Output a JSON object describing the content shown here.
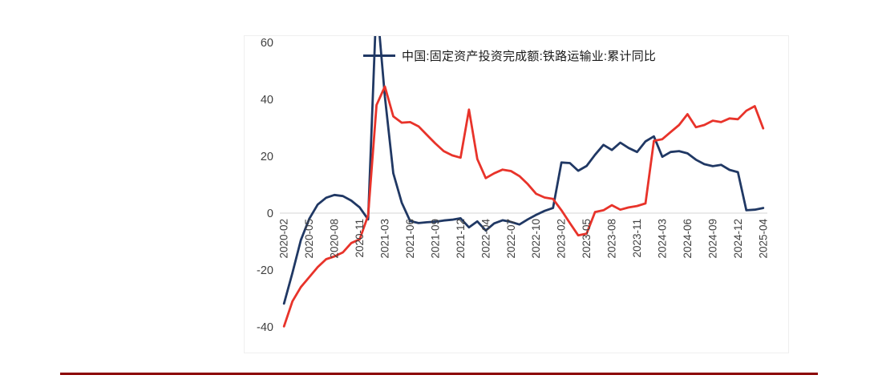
{
  "page": {
    "background": "#ffffff"
  },
  "colors": {
    "series_blue": "#203864",
    "series_red": "#e8332a",
    "axis_text": "#404040",
    "zero_line": "#d6d6d6",
    "footer_divider": "#8b0000"
  },
  "chart_data": {
    "type": "line",
    "title": "",
    "legend_position": "top-center",
    "legend_entries": [
      "中国:固定资产投资完成额:铁路运输业:累计同比"
    ],
    "grid": "zero-line-only",
    "ylim": [
      -40,
      60
    ],
    "yticks": [
      60,
      40,
      20,
      0,
      -20,
      -40
    ],
    "x_tick_every": 3,
    "categories": [
      "2020-02",
      "2020-03",
      "2020-04",
      "2020-05",
      "2020-06",
      "2020-07",
      "2020-08",
      "2020-09",
      "2020-10",
      "2020-11",
      "2020-12",
      "2021-02",
      "2021-03",
      "2021-04",
      "2021-05",
      "2021-06",
      "2021-07",
      "2021-08",
      "2021-09",
      "2021-10",
      "2021-11",
      "2021-12",
      "2022-02",
      "2022-03",
      "2022-04",
      "2022-05",
      "2022-06",
      "2022-07",
      "2022-08",
      "2022-09",
      "2022-10",
      "2022-11",
      "2022-12",
      "2023-02",
      "2023-03",
      "2023-04",
      "2023-05",
      "2023-06",
      "2023-07",
      "2023-08",
      "2023-09",
      "2023-10",
      "2023-11",
      "2023-12",
      "2024-02",
      "2024-03",
      "2024-04",
      "2024-05",
      "2024-06",
      "2024-07",
      "2024-08",
      "2024-09",
      "2024-10",
      "2024-11",
      "2024-12",
      "2025-02",
      "2025-03",
      "2025-04"
    ],
    "series": [
      {
        "name": "中国:固定资产投资完成额:铁路运输业:累计同比",
        "color": "#203864",
        "clipped_above_axis_max": true,
        "values": [
          -31.8,
          -21,
          -9.5,
          -2,
          3,
          5.4,
          6.4,
          6,
          4.4,
          2,
          -2.2,
          75,
          41,
          14,
          3.7,
          -2.8,
          -3.5,
          -3.2,
          -3,
          -2.6,
          -2.3,
          -1.8,
          -5,
          -2.9,
          -6.1,
          -3.6,
          -2.5,
          -3.1,
          -4,
          -2.2,
          -0.6,
          0.8,
          1.8,
          17.8,
          17.6,
          14.9,
          16.6,
          20.5,
          24,
          22.2,
          24.8,
          22.9,
          21.5,
          25.2,
          27,
          19.8,
          21.5,
          21.8,
          21,
          18.8,
          17.2,
          16.5,
          17,
          15.2,
          14.4,
          1,
          1.2,
          1.8
        ]
      },
      {
        "name": "",
        "color": "#e8332a",
        "values": [
          -39.8,
          -31,
          -26,
          -22.5,
          -19,
          -16.2,
          -15.2,
          -13.8,
          -10.5,
          -9.2,
          -0.8,
          38,
          44.5,
          34,
          31.8,
          32,
          30.5,
          27.5,
          24.5,
          21.8,
          20.3,
          19.5,
          36.4,
          19,
          12.3,
          14,
          15.3,
          14.8,
          13,
          10.2,
          6.8,
          5.5,
          5,
          1,
          -3.5,
          -7.8,
          -7.2,
          0.4,
          1,
          2.8,
          1.2,
          2,
          2.5,
          3.4,
          25.4,
          26,
          28.5,
          31,
          34.8,
          30.2,
          31,
          32.5,
          32,
          33.3,
          33,
          36,
          37.6,
          29.8
        ]
      }
    ]
  }
}
